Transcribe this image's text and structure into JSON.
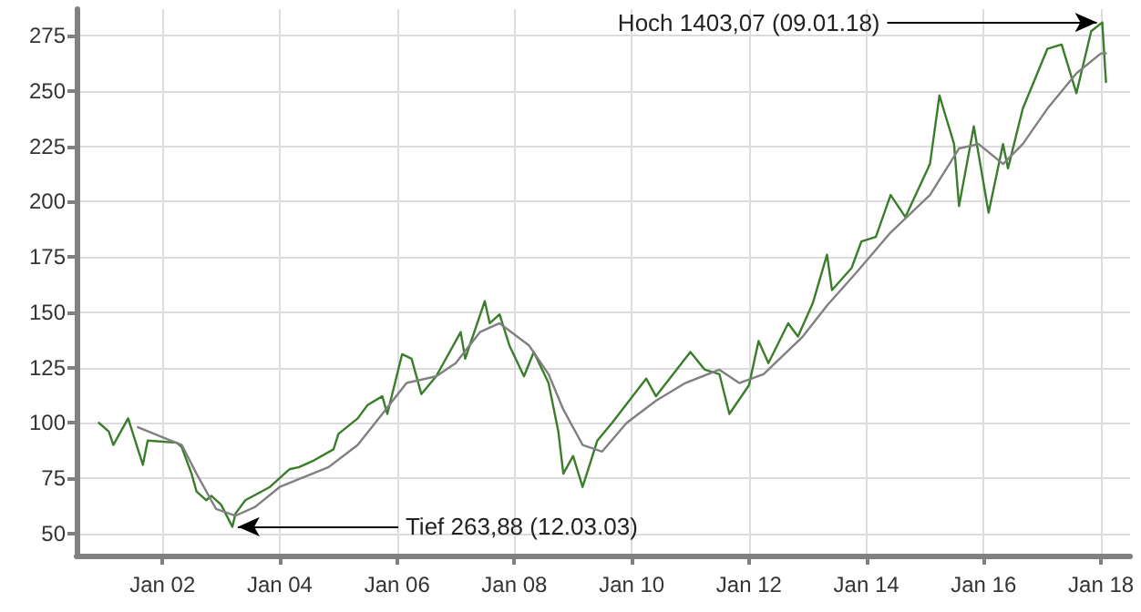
{
  "chart_data": {
    "type": "line",
    "xlim": [
      "2000-07-15",
      "2018-07-01"
    ],
    "xticks": [
      {
        "value": "2002-01-01",
        "label": "Jan 02"
      },
      {
        "value": "2004-01-01",
        "label": "Jan 04"
      },
      {
        "value": "2006-01-01",
        "label": "Jan 06"
      },
      {
        "value": "2008-01-01",
        "label": "Jan 08"
      },
      {
        "value": "2010-01-01",
        "label": "Jan 10"
      },
      {
        "value": "2012-01-01",
        "label": "Jan 12"
      },
      {
        "value": "2014-01-01",
        "label": "Jan 14"
      },
      {
        "value": "2016-01-01",
        "label": "Jan 16"
      },
      {
        "value": "2018-01-01",
        "label": "Jan 18"
      }
    ],
    "ylim": [
      40,
      287
    ],
    "yticks": [
      50,
      75,
      100,
      125,
      150,
      175,
      200,
      225,
      250,
      275
    ],
    "grid": true,
    "marker": "none",
    "line_style": "solid",
    "series": [
      {
        "color": "#3a7d2a",
        "x": [
          "2000-12",
          "2001-02",
          "2001-03",
          "2001-06",
          "2001-09",
          "2001-10",
          "2002-04",
          "2002-05",
          "2002-07",
          "2002-08",
          "2002-10",
          "2002-11",
          "2003-01",
          "2003-03-12",
          "2003-04",
          "2003-06",
          "2003-11",
          "2004-03",
          "2004-05",
          "2004-08",
          "2004-12",
          "2005-01",
          "2005-05",
          "2005-07",
          "2005-10",
          "2005-11",
          "2006-02",
          "2006-04",
          "2006-06",
          "2006-09",
          "2007-02",
          "2007-03",
          "2007-07",
          "2007-08",
          "2007-10",
          "2007-12",
          "2008-03",
          "2008-05",
          "2008-08",
          "2008-10",
          "2008-11",
          "2009-01",
          "2009-03",
          "2009-06",
          "2009-09",
          "2010-04",
          "2010-06",
          "2011-01",
          "2011-04",
          "2011-07",
          "2011-09",
          "2012-01",
          "2012-03",
          "2012-05",
          "2012-09",
          "2012-11",
          "2013-02",
          "2013-05",
          "2013-06",
          "2013-10",
          "2013-12",
          "2014-03",
          "2014-06",
          "2014-09",
          "2015-02",
          "2015-04",
          "2015-07",
          "2015-08",
          "2015-11",
          "2016-02",
          "2016-05",
          "2016-06",
          "2016-09",
          "2017-02",
          "2017-05",
          "2017-08",
          "2017-11",
          "2018-01-09",
          "2018-02"
        ],
        "values": [
          100,
          96,
          90,
          102,
          81,
          92,
          91,
          89,
          77,
          69,
          65,
          67,
          63,
          53,
          59,
          65,
          71,
          79,
          80,
          83,
          88,
          95,
          102,
          108,
          112,
          104,
          131,
          129,
          113,
          121,
          141,
          129,
          155,
          145,
          149,
          135,
          121,
          132,
          118,
          96,
          77,
          85,
          71,
          92,
          100,
          120,
          112,
          132,
          124,
          122,
          104,
          117,
          137,
          127,
          145,
          139,
          154,
          176,
          160,
          170,
          182,
          184,
          203,
          193,
          217,
          248,
          226,
          198,
          234,
          195,
          226,
          215,
          242,
          269,
          271,
          249,
          277,
          281,
          254
        ]
      },
      {
        "color": "#808080",
        "x": [
          "2001-08",
          "2002-05",
          "2002-08",
          "2002-12",
          "2003-04",
          "2003-08",
          "2004-01",
          "2004-11",
          "2005-05",
          "2005-10",
          "2006-03",
          "2006-09",
          "2007-01",
          "2007-06",
          "2007-10",
          "2008-04",
          "2008-08",
          "2008-11",
          "2009-03",
          "2009-07",
          "2009-12",
          "2010-06",
          "2010-12",
          "2011-07",
          "2011-11",
          "2012-04",
          "2012-12",
          "2013-05",
          "2013-11",
          "2014-06",
          "2015-02",
          "2015-08",
          "2015-12",
          "2016-05",
          "2016-09",
          "2017-02",
          "2017-08",
          "2018-01",
          "2018-02"
        ],
        "values": [
          98,
          90,
          77,
          61,
          58,
          62,
          71,
          80,
          90,
          104,
          118,
          121,
          127,
          141,
          145,
          135,
          122,
          106,
          90,
          87,
          100,
          110,
          118,
          124,
          118,
          122,
          139,
          153,
          168,
          186,
          203,
          224,
          226,
          217,
          226,
          242,
          258,
          267,
          267
        ]
      }
    ],
    "annotations": [
      {
        "text": "Hoch 1403,07 (09.01.18)",
        "x": "2018-01-09",
        "y": 281
      },
      {
        "text": "Tief 263,88 (12.03.03)",
        "x": "2003-03-12",
        "y": 53
      }
    ]
  }
}
